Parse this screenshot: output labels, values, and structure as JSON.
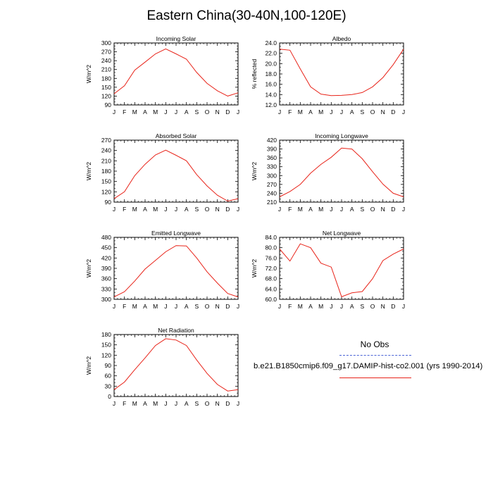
{
  "title": "Eastern China(30-40N,100-120E)",
  "legend": {
    "obs_label": "No Obs",
    "model_label": "b.e21.B1850cmip6.f09_g17.DAMIP-hist-co2.001 (yrs 1990-2014)",
    "obs_color": "#4a63d6",
    "model_color": "#e8241a"
  },
  "chart_data": [
    {
      "type": "line",
      "title": "Incoming Solar",
      "ylabel": "W/m^2",
      "categories": [
        "J",
        "F",
        "M",
        "A",
        "M",
        "J",
        "J",
        "A",
        "S",
        "O",
        "N",
        "D",
        "J"
      ],
      "ylim": [
        90,
        300
      ],
      "yticks": [
        "90",
        "120",
        "150",
        "180",
        "210",
        "240",
        "270",
        "300"
      ],
      "series": [
        {
          "values": [
            128,
            155,
            208,
            235,
            263,
            280,
            263,
            245,
            200,
            163,
            138,
            120,
            131
          ]
        }
      ]
    },
    {
      "type": "line",
      "title": "Albedo",
      "ylabel": "% reflected",
      "categories": [
        "J",
        "F",
        "M",
        "A",
        "M",
        "J",
        "J",
        "A",
        "S",
        "O",
        "N",
        "D",
        "J"
      ],
      "ylim": [
        12.0,
        24.0
      ],
      "yticks": [
        "12.0",
        "14.0",
        "16.0",
        "18.0",
        "20.0",
        "22.0",
        "24.0"
      ],
      "series": [
        {
          "values": [
            22.8,
            22.6,
            19.0,
            15.5,
            14.1,
            13.8,
            13.85,
            14.0,
            14.4,
            15.5,
            17.3,
            19.8,
            22.8
          ]
        }
      ]
    },
    {
      "type": "line",
      "title": "Absorbed Solar",
      "ylabel": "W/m^2",
      "categories": [
        "J",
        "F",
        "M",
        "A",
        "M",
        "J",
        "J",
        "A",
        "S",
        "O",
        "N",
        "D",
        "J"
      ],
      "ylim": [
        90,
        270
      ],
      "yticks": [
        "90",
        "120",
        "150",
        "180",
        "210",
        "240",
        "270"
      ],
      "series": [
        {
          "values": [
            100,
            120,
            167,
            200,
            227,
            241,
            226,
            210,
            170,
            137,
            110,
            93,
            100
          ]
        }
      ]
    },
    {
      "type": "line",
      "title": "Incoming Longwave",
      "ylabel": "W/m^2",
      "categories": [
        "J",
        "F",
        "M",
        "A",
        "M",
        "J",
        "J",
        "A",
        "S",
        "O",
        "N",
        "D",
        "J"
      ],
      "ylim": [
        210,
        420
      ],
      "yticks": [
        "210",
        "240",
        "270",
        "300",
        "330",
        "360",
        "390",
        "420"
      ],
      "series": [
        {
          "values": [
            228,
            246,
            270,
            308,
            338,
            362,
            393,
            390,
            357,
            313,
            271,
            240,
            228
          ]
        }
      ]
    },
    {
      "type": "line",
      "title": "Emitted Longwave",
      "ylabel": "W/m^2",
      "categories": [
        "J",
        "F",
        "M",
        "A",
        "M",
        "J",
        "J",
        "A",
        "S",
        "O",
        "N",
        "D",
        "J"
      ],
      "ylim": [
        300,
        480
      ],
      "yticks": [
        "300",
        "330",
        "360",
        "390",
        "420",
        "450",
        "480"
      ],
      "series": [
        {
          "values": [
            307,
            322,
            353,
            388,
            413,
            438,
            456,
            455,
            420,
            380,
            347,
            317,
            307
          ]
        }
      ]
    },
    {
      "type": "line",
      "title": "Net Longwave",
      "ylabel": "W/m^2",
      "categories": [
        "J",
        "F",
        "M",
        "A",
        "M",
        "J",
        "J",
        "A",
        "S",
        "O",
        "N",
        "D",
        "J"
      ],
      "ylim": [
        60.0,
        84.0
      ],
      "yticks": [
        "60.0",
        "64.0",
        "68.0",
        "72.0",
        "76.0",
        "80.0",
        "84.0"
      ],
      "series": [
        {
          "values": [
            79.5,
            74.8,
            81.5,
            80.0,
            74.0,
            72.5,
            61.0,
            62.5,
            63.0,
            68.0,
            75.0,
            77.5,
            79.5
          ]
        }
      ]
    },
    {
      "type": "line",
      "title": "Net Radiation",
      "ylabel": "W/m^2",
      "categories": [
        "J",
        "F",
        "M",
        "A",
        "M",
        "J",
        "J",
        "A",
        "S",
        "O",
        "N",
        "D",
        "J"
      ],
      "ylim": [
        0,
        180
      ],
      "yticks": [
        "0",
        "30",
        "60",
        "90",
        "120",
        "150",
        "180"
      ],
      "series": [
        {
          "values": [
            20,
            42,
            78,
            112,
            148,
            168,
            164,
            148,
            106,
            67,
            35,
            16,
            20
          ]
        }
      ]
    }
  ]
}
